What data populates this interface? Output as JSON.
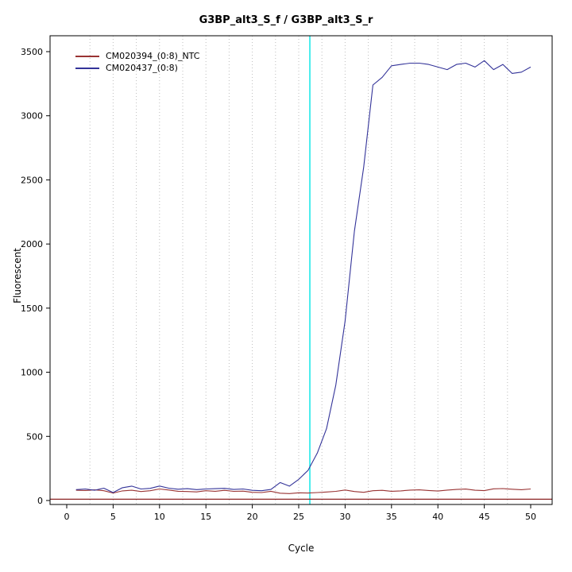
{
  "chart_data": {
    "type": "line",
    "title": "G3BP_alt3_S_f / G3BP_alt3_S_r",
    "x_label": "Cycle",
    "y_label": "Fluorescent",
    "x_range": [
      0,
      50
    ],
    "y_range": [
      0,
      3500
    ],
    "x_ticks": [
      0,
      5,
      10,
      15,
      20,
      25,
      30,
      35,
      40,
      45,
      50
    ],
    "y_ticks": [
      0,
      500,
      1000,
      1500,
      2000,
      2500,
      3000,
      3500
    ],
    "grid": {
      "x_spacing": 2.5,
      "style": "dotted",
      "color": "#bdbdbd"
    },
    "ct_line": {
      "x": 26.2,
      "color": "#00e6e6"
    },
    "threshold": {
      "value": 10,
      "color": "#8b2323"
    },
    "cycles": [
      1,
      2,
      3,
      4,
      5,
      6,
      7,
      8,
      9,
      10,
      11,
      12,
      13,
      14,
      15,
      16,
      17,
      18,
      19,
      20,
      21,
      22,
      23,
      24,
      25,
      26,
      27,
      28,
      29,
      30,
      31,
      32,
      33,
      34,
      35,
      36,
      37,
      38,
      39,
      40,
      41,
      42,
      43,
      44,
      45,
      46,
      47,
      48,
      49,
      50
    ],
    "series": [
      {
        "name": "CM020394_(0:8)_NTC",
        "color": "#993333",
        "values": [
          80,
          78,
          83,
          76,
          58,
          75,
          80,
          70,
          76,
          90,
          82,
          72,
          70,
          67,
          76,
          72,
          79,
          71,
          73,
          64,
          62,
          72,
          57,
          54,
          60,
          58,
          62,
          66,
          71,
          82,
          70,
          64,
          76,
          79,
          72,
          75,
          81,
          83,
          78,
          74,
          81,
          86,
          89,
          80,
          77,
          91,
          93,
          88,
          84,
          90
        ]
      },
      {
        "name": "CM020437_(0:8)",
        "color": "#333399",
        "values": [
          85,
          90,
          80,
          96,
          62,
          100,
          112,
          90,
          95,
          113,
          96,
          88,
          92,
          85,
          90,
          92,
          95,
          86,
          90,
          79,
          76,
          86,
          140,
          112,
          165,
          235,
          370,
          560,
          900,
          1400,
          2100,
          2600,
          3240,
          3300,
          3390,
          3400,
          3410,
          3410,
          3400,
          3380,
          3360,
          3400,
          3410,
          3380,
          3430,
          3360,
          3400,
          3330,
          3340,
          3380
        ]
      }
    ]
  }
}
